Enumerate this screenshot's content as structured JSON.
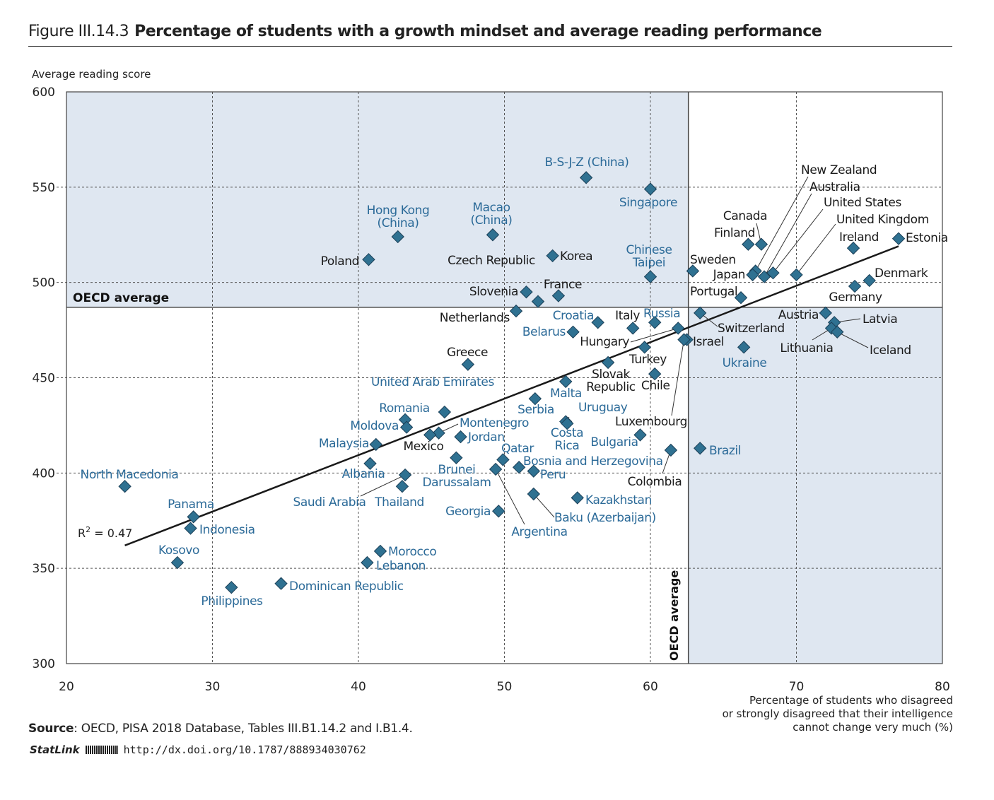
{
  "header": {
    "figure_number": "Figure III.14.3",
    "title": "Percentage of students with a growth mindset and average reading performance"
  },
  "footer": {
    "source_label": "Source",
    "source_text": ": OECD, PISA 2018 Database, Tables III.B1.14.2 and I.B1.4.",
    "statlink_label": "StatLink",
    "statlink_url": "http://dx.doi.org/10.1787/888934030762"
  },
  "chart_data": {
    "type": "scatter",
    "title": "Percentage of students with a growth mindset and average reading performance",
    "ylabel": "Average reading score",
    "xlabel_lines": [
      "Percentage of students who disagreed",
      "or strongly disagreed that their intelligence",
      "cannot change very much (%)"
    ],
    "xlim": [
      20,
      80
    ],
    "ylim": [
      300,
      600
    ],
    "xticks": [
      20,
      30,
      40,
      50,
      60,
      70,
      80
    ],
    "yticks": [
      300,
      350,
      400,
      450,
      500,
      550,
      600
    ],
    "grid": "dashed",
    "oecd_average": {
      "label": "OECD average",
      "x": 62.6,
      "y": 487
    },
    "trendline": {
      "x": [
        24.0,
        77.0
      ],
      "y": [
        362,
        519
      ],
      "r2_label": "R",
      "r2_sup": "2",
      "r2_value": " = 0.47"
    },
    "colors": {
      "marker": "#2f7191",
      "marker_stroke": "#1c4058",
      "partner_label": "#2b6a98",
      "oecd_label": "#1a1a1a",
      "shade": "#dfe7f1"
    },
    "points": [
      {
        "name": "B-S-J-Z (China)",
        "x": 55.6,
        "y": 555,
        "group": "partner"
      },
      {
        "name": "Singapore",
        "x": 60.0,
        "y": 549,
        "group": "partner"
      },
      {
        "name": "Hong Kong (China)",
        "x": 42.7,
        "y": 524,
        "group": "partner"
      },
      {
        "name": "Macao (China)",
        "x": 49.2,
        "y": 525,
        "group": "partner"
      },
      {
        "name": "Poland",
        "x": 40.7,
        "y": 512,
        "group": "oecd"
      },
      {
        "name": "Korea",
        "x": 53.3,
        "y": 514,
        "group": "oecd"
      },
      {
        "name": "Chinese Taipei",
        "x": 60.0,
        "y": 503,
        "group": "partner"
      },
      {
        "name": "Czech Republic",
        "x": 52.3,
        "y": 490,
        "group": "oecd"
      },
      {
        "name": "Slovenia",
        "x": 51.5,
        "y": 495,
        "group": "oecd"
      },
      {
        "name": "France",
        "x": 53.7,
        "y": 493,
        "group": "oecd"
      },
      {
        "name": "Netherlands",
        "x": 50.8,
        "y": 485,
        "group": "oecd"
      },
      {
        "name": "Croatia",
        "x": 56.4,
        "y": 479,
        "group": "partner"
      },
      {
        "name": "Belarus",
        "x": 54.7,
        "y": 474,
        "group": "partner"
      },
      {
        "name": "Italy",
        "x": 58.8,
        "y": 476,
        "group": "oecd"
      },
      {
        "name": "Russia",
        "x": 60.3,
        "y": 479,
        "group": "partner"
      },
      {
        "name": "Hungary",
        "x": 61.9,
        "y": 476,
        "group": "oecd"
      },
      {
        "name": "Turkey",
        "x": 59.6,
        "y": 466,
        "group": "oecd"
      },
      {
        "name": "Slovak Republic",
        "x": 57.1,
        "y": 458,
        "group": "oecd"
      },
      {
        "name": "Chile",
        "x": 60.3,
        "y": 452,
        "group": "oecd"
      },
      {
        "name": "Israel",
        "x": 62.5,
        "y": 470,
        "group": "oecd"
      },
      {
        "name": "Luxembourg",
        "x": 62.3,
        "y": 470,
        "group": "oecd"
      },
      {
        "name": "Greece",
        "x": 47.5,
        "y": 457,
        "group": "oecd"
      },
      {
        "name": "United Arab Emirates",
        "x": 45.9,
        "y": 432,
        "group": "partner"
      },
      {
        "name": "Malta",
        "x": 54.2,
        "y": 448,
        "group": "partner"
      },
      {
        "name": "Serbia",
        "x": 52.1,
        "y": 439,
        "group": "partner"
      },
      {
        "name": "Uruguay",
        "x": 54.2,
        "y": 427,
        "group": "partner"
      },
      {
        "name": "Costa Rica",
        "x": 54.3,
        "y": 426,
        "group": "partner"
      },
      {
        "name": "Romania",
        "x": 43.2,
        "y": 428,
        "group": "partner"
      },
      {
        "name": "Moldova",
        "x": 43.3,
        "y": 424,
        "group": "partner"
      },
      {
        "name": "Montenegro",
        "x": 45.5,
        "y": 421,
        "group": "partner"
      },
      {
        "name": "Mexico",
        "x": 44.9,
        "y": 420,
        "group": "oecd"
      },
      {
        "name": "Jordan",
        "x": 47.0,
        "y": 419,
        "group": "partner"
      },
      {
        "name": "Malaysia",
        "x": 41.2,
        "y": 415,
        "group": "partner"
      },
      {
        "name": "Bulgaria",
        "x": 59.3,
        "y": 420,
        "group": "partner"
      },
      {
        "name": "Qatar",
        "x": 49.9,
        "y": 407,
        "group": "partner"
      },
      {
        "name": "Brunei Darussalam",
        "x": 46.7,
        "y": 408,
        "group": "partner"
      },
      {
        "name": "Bosnia and Herzegovina",
        "x": 51.0,
        "y": 403,
        "group": "partner"
      },
      {
        "name": "Peru",
        "x": 52.0,
        "y": 401,
        "group": "partner"
      },
      {
        "name": "Albania",
        "x": 40.8,
        "y": 405,
        "group": "partner"
      },
      {
        "name": "Argentina",
        "x": 49.4,
        "y": 402,
        "group": "partner"
      },
      {
        "name": "Colombia",
        "x": 61.4,
        "y": 412,
        "group": "oecd"
      },
      {
        "name": "Brazil",
        "x": 63.4,
        "y": 413,
        "group": "partner"
      },
      {
        "name": "Saudi Arabia",
        "x": 43.2,
        "y": 399,
        "group": "partner"
      },
      {
        "name": "Thailand",
        "x": 43.0,
        "y": 393,
        "group": "partner"
      },
      {
        "name": "North Macedonia",
        "x": 24.0,
        "y": 393,
        "group": "partner"
      },
      {
        "name": "Baku (Azerbaijan)",
        "x": 52.0,
        "y": 389,
        "group": "partner"
      },
      {
        "name": "Kazakhstan",
        "x": 55.0,
        "y": 387,
        "group": "partner"
      },
      {
        "name": "Georgia",
        "x": 49.6,
        "y": 380,
        "group": "partner"
      },
      {
        "name": "Panama",
        "x": 28.7,
        "y": 377,
        "group": "partner"
      },
      {
        "name": "Indonesia",
        "x": 28.5,
        "y": 371,
        "group": "partner"
      },
      {
        "name": "Kosovo",
        "x": 27.6,
        "y": 353,
        "group": "partner"
      },
      {
        "name": "Morocco",
        "x": 41.5,
        "y": 359,
        "group": "partner"
      },
      {
        "name": "Lebanon",
        "x": 40.6,
        "y": 353,
        "group": "partner"
      },
      {
        "name": "Dominican Republic",
        "x": 34.7,
        "y": 342,
        "group": "partner"
      },
      {
        "name": "Philippines",
        "x": 31.3,
        "y": 340,
        "group": "partner"
      },
      {
        "name": "Canada",
        "x": 67.6,
        "y": 520,
        "group": "oecd"
      },
      {
        "name": "Finland",
        "x": 66.7,
        "y": 520,
        "group": "oecd"
      },
      {
        "name": "New Zealand",
        "x": 67.2,
        "y": 506,
        "group": "oecd"
      },
      {
        "name": "Australia",
        "x": 67.8,
        "y": 503,
        "group": "oecd"
      },
      {
        "name": "United States",
        "x": 68.4,
        "y": 505,
        "group": "oecd"
      },
      {
        "name": "United Kingdom",
        "x": 70.0,
        "y": 504,
        "group": "oecd"
      },
      {
        "name": "Japan",
        "x": 67.0,
        "y": 504,
        "group": "oecd"
      },
      {
        "name": "Ireland",
        "x": 73.9,
        "y": 518,
        "group": "oecd"
      },
      {
        "name": "Estonia",
        "x": 77.0,
        "y": 523,
        "group": "oecd"
      },
      {
        "name": "Denmark",
        "x": 75.0,
        "y": 501,
        "group": "oecd"
      },
      {
        "name": "Germany",
        "x": 74.0,
        "y": 498,
        "group": "oecd"
      },
      {
        "name": "Sweden",
        "x": 62.9,
        "y": 506,
        "group": "oecd"
      },
      {
        "name": "Portugal",
        "x": 66.2,
        "y": 492,
        "group": "oecd"
      },
      {
        "name": "Switzerland",
        "x": 63.4,
        "y": 484,
        "group": "oecd"
      },
      {
        "name": "Austria",
        "x": 72.0,
        "y": 484,
        "group": "oecd"
      },
      {
        "name": "Latvia",
        "x": 72.6,
        "y": 479,
        "group": "oecd"
      },
      {
        "name": "Lithuania",
        "x": 72.4,
        "y": 476,
        "group": "oecd"
      },
      {
        "name": "Iceland",
        "x": 72.8,
        "y": 474,
        "group": "oecd"
      },
      {
        "name": "Ukraine",
        "x": 66.4,
        "y": 466,
        "group": "partner"
      }
    ]
  }
}
